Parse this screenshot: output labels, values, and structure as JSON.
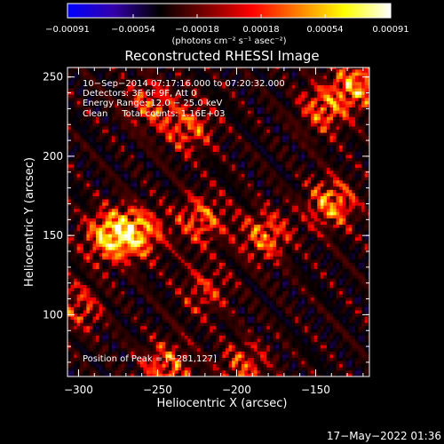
{
  "chart_data": {
    "type": "heatmap",
    "title": "Reconstructed RHESSI Image",
    "xlabel": "Heliocentric X (arcsec)",
    "ylabel": "Heliocentric Y (arcsec)",
    "xlim": [
      -307,
      -116
    ],
    "ylim": [
      61,
      256
    ],
    "x_ticks": [
      -300,
      -250,
      -200,
      -150
    ],
    "y_ticks": [
      100,
      150,
      200,
      250
    ],
    "x_tick_labels": [
      "−300",
      "−250",
      "−200",
      "−150"
    ],
    "y_tick_labels": [
      "100",
      "150",
      "200",
      "250"
    ],
    "colorbar": {
      "min": -0.00091,
      "max": 0.00091,
      "ticks": [
        -0.00091,
        -0.00054,
        -0.00018,
        0.00018,
        0.00054,
        0.00091
      ],
      "tick_labels": [
        "−0.00091",
        "−0.00054",
        "−0.00018",
        "0.00018",
        "0.00054",
        "0.00091"
      ],
      "units": "(photons cm⁻² s⁻¹ asec⁻²)",
      "colormap": [
        "#0000ff",
        "#3300aa",
        "#000000",
        "#7a0000",
        "#ff0000",
        "#ff8000",
        "#ffff00",
        "#ffffff"
      ]
    },
    "annotations": [
      "10−Sep−2014 07:17:16.000 to 07:20:32.000",
      "Detectors: 3F 6F 9F, Att 0",
      "Energy Range: 12.0 − 25.0 keV",
      "Clean     Total counts: 1.16E+03"
    ],
    "peak_label": "Position of Peak = [−281,127]",
    "peak": [
      -281,
      127
    ],
    "bright_sources": [
      {
        "x": -280,
        "y": 150,
        "level": 1.0
      },
      {
        "x": -262,
        "y": 152,
        "level": 0.85
      },
      {
        "x": -222,
        "y": 160,
        "level": 0.7
      },
      {
        "x": -182,
        "y": 150,
        "level": 0.75
      },
      {
        "x": -140,
        "y": 170,
        "level": 0.85
      },
      {
        "x": -123,
        "y": 246,
        "level": 0.85
      },
      {
        "x": -145,
        "y": 230,
        "level": 0.7
      },
      {
        "x": -230,
        "y": 218,
        "level": 0.65
      },
      {
        "x": -255,
        "y": 233,
        "level": 0.6
      },
      {
        "x": -245,
        "y": 68,
        "level": 0.7
      },
      {
        "x": -195,
        "y": 68,
        "level": 0.6
      },
      {
        "x": -300,
        "y": 105,
        "level": 0.55
      },
      {
        "x": -220,
        "y": 115,
        "level": 0.5
      }
    ]
  },
  "footer": {
    "date": "17−May−2022 01:36"
  }
}
